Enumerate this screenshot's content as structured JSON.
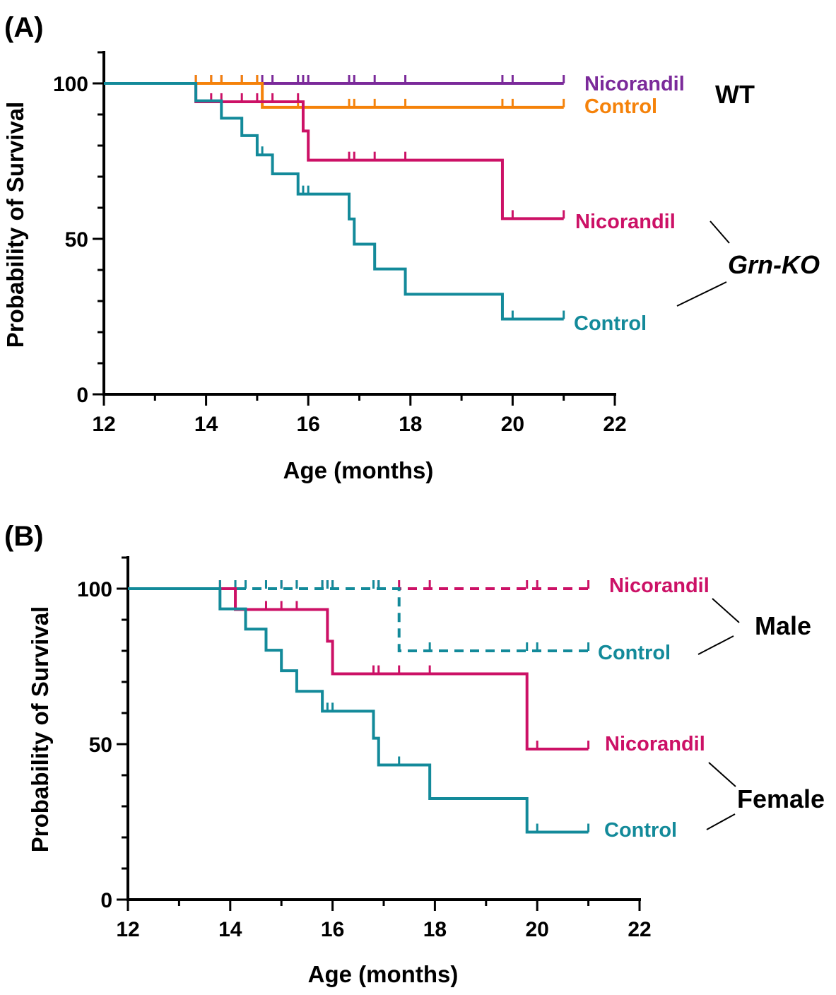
{
  "chart_data": [
    {
      "panel": "(A)",
      "type": "line",
      "subtype": "kaplan-meier",
      "xlabel": "Age (months)",
      "ylabel": "Probability of Survival",
      "xlim": [
        12,
        22
      ],
      "ylim": [
        0,
        110
      ],
      "xticks": [
        12,
        14,
        16,
        18,
        20,
        22
      ],
      "yticks": [
        0,
        50,
        100
      ],
      "xtick_labels": [
        "12",
        "14",
        "16",
        "18",
        "20",
        "22"
      ],
      "ytick_labels": [
        "0",
        "50",
        "100"
      ],
      "grid": false,
      "groups": [
        {
          "label": "WT",
          "italic": false,
          "series": [
            0,
            1
          ]
        },
        {
          "label": "Grn-KO",
          "italic": true,
          "series": [
            2,
            3
          ]
        }
      ],
      "series": [
        {
          "name": "Nicorandil",
          "color": "#7B2A9A",
          "dashed": false,
          "x": [
            12,
            21
          ],
          "y": [
            100,
            100
          ],
          "censored_x": [
            13.8,
            14.1,
            14.3,
            14.7,
            15.0,
            15.1,
            15.3,
            15.8,
            15.9,
            16.0,
            16.8,
            16.9,
            17.3,
            17.9,
            19.8,
            20.0,
            21.0
          ]
        },
        {
          "name": "Control",
          "color": "#F5820A",
          "dashed": false,
          "x": [
            12,
            15.1,
            21
          ],
          "y": [
            100,
            92.3,
            92.3
          ],
          "censored_x": [
            13.8,
            14.1,
            14.3,
            14.7,
            15.0,
            15.8,
            16.8,
            16.9,
            17.3,
            17.9,
            19.8,
            20.0,
            21.0
          ]
        },
        {
          "name": "Nicorandil",
          "color": "#CC1166",
          "dashed": false,
          "x": [
            12,
            13.8,
            15.9,
            16.0,
            19.8,
            21
          ],
          "y": [
            100,
            94.1,
            84.7,
            75.3,
            56.5,
            56.5
          ],
          "censored_x": [
            14.1,
            14.3,
            14.7,
            15.0,
            15.3,
            15.8,
            16.8,
            16.9,
            17.3,
            17.9,
            20.0,
            21.0
          ]
        },
        {
          "name": "Control",
          "color": "#138A9A",
          "dashed": false,
          "x": [
            12,
            13.8,
            14.3,
            14.7,
            15.0,
            15.3,
            15.8,
            16.8,
            16.9,
            17.3,
            17.9,
            19.8,
            21
          ],
          "y": [
            100,
            94.4,
            88.8,
            83.2,
            77.0,
            70.9,
            64.4,
            56.4,
            48.3,
            40.3,
            32.2,
            24.2,
            24.2
          ],
          "censored_x": [
            15.1,
            15.9,
            16.0,
            20.0,
            21.0
          ]
        }
      ]
    },
    {
      "panel": "(B)",
      "type": "line",
      "subtype": "kaplan-meier",
      "xlabel": "Age (months)",
      "ylabel": "Probability of Survival",
      "xlim": [
        12,
        22
      ],
      "ylim": [
        0,
        110
      ],
      "xticks": [
        12,
        14,
        16,
        18,
        20,
        22
      ],
      "yticks": [
        0,
        50,
        100
      ],
      "xtick_labels": [
        "12",
        "14",
        "16",
        "18",
        "20",
        "22"
      ],
      "ytick_labels": [
        "0",
        "50",
        "100"
      ],
      "grid": false,
      "groups": [
        {
          "label": "Male",
          "italic": false,
          "series": [
            0,
            1
          ]
        },
        {
          "label": "Female",
          "italic": false,
          "series": [
            2,
            3
          ]
        }
      ],
      "series": [
        {
          "name": "Nicorandil",
          "color": "#CC1166",
          "dashed": true,
          "x": [
            12,
            21
          ],
          "y": [
            100,
            100
          ],
          "censored_x": [
            13.8,
            14.1,
            14.3,
            14.7,
            15.0,
            15.3,
            15.8,
            15.9,
            16.0,
            16.8,
            16.9,
            17.3,
            17.9,
            19.8,
            20.0,
            21.0
          ]
        },
        {
          "name": "Control",
          "color": "#138A9A",
          "dashed": true,
          "x": [
            12,
            17.3,
            21
          ],
          "y": [
            100,
            80,
            80
          ],
          "censored_x": [
            13.8,
            14.1,
            14.3,
            14.7,
            15.0,
            15.3,
            15.8,
            15.9,
            16.0,
            16.8,
            16.9,
            17.9,
            19.8,
            20.0,
            21.0
          ]
        },
        {
          "name": "Nicorandil",
          "color": "#CC1166",
          "dashed": false,
          "x": [
            12,
            14.1,
            15.9,
            16.0,
            19.8,
            21
          ],
          "y": [
            100,
            93.3,
            83.1,
            72.6,
            48.4,
            48.4
          ],
          "censored_x": [
            14.7,
            15.0,
            15.3,
            16.8,
            16.9,
            17.3,
            17.9,
            20.0,
            21.0
          ]
        },
        {
          "name": "Control",
          "color": "#138A9A",
          "dashed": false,
          "x": [
            12,
            13.8,
            14.3,
            14.7,
            15.0,
            15.3,
            15.8,
            16.8,
            16.9,
            17.9,
            19.8,
            21
          ],
          "y": [
            100,
            93.5,
            87.0,
            80.2,
            73.6,
            67.0,
            60.6,
            51.9,
            43.3,
            32.5,
            21.7,
            21.7
          ],
          "censored_x": [
            15.9,
            16.0,
            17.3,
            20.0,
            21.0
          ]
        }
      ]
    }
  ]
}
